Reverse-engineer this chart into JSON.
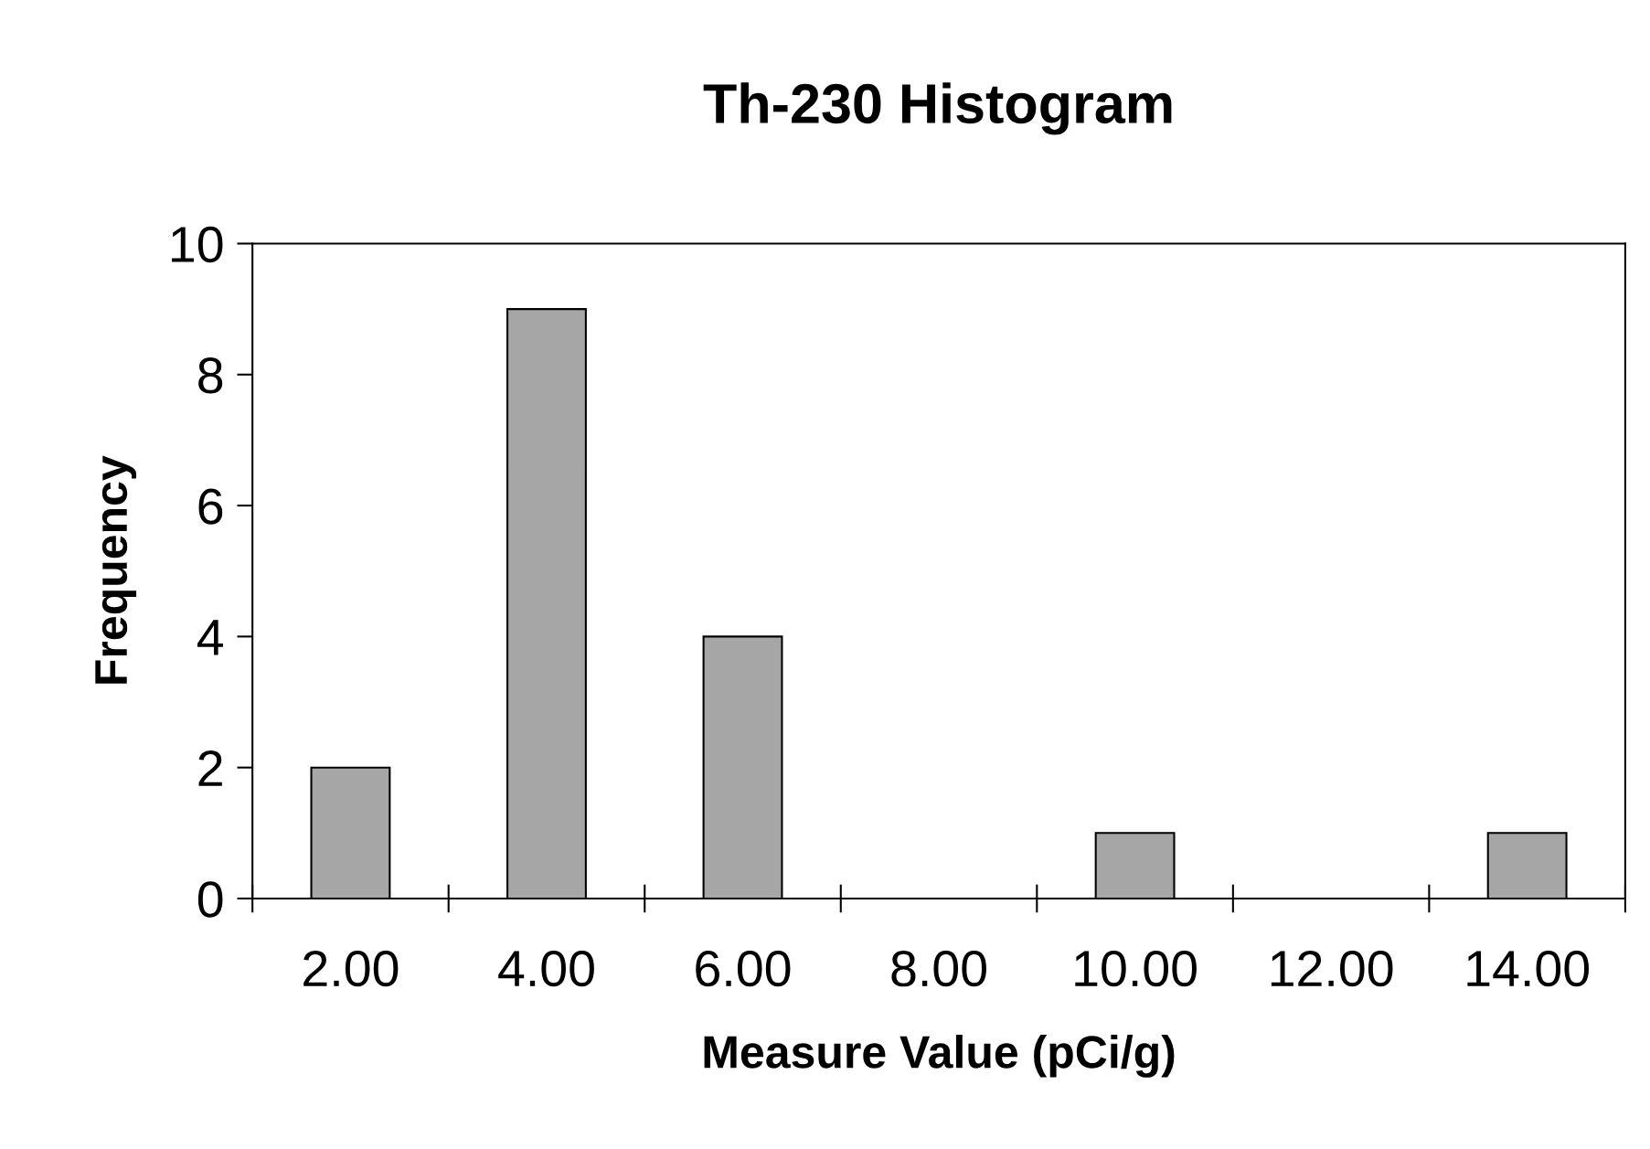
{
  "chart_data": {
    "type": "bar",
    "title": "Th-230 Histogram",
    "xlabel": "Measure Value (pCi/g)",
    "ylabel": "Frequency",
    "categories": [
      "2.00",
      "4.00",
      "6.00",
      "8.00",
      "10.00",
      "12.00",
      "14.00"
    ],
    "values": [
      2,
      9,
      4,
      0,
      1,
      0,
      1
    ],
    "color": "#a6a6a6",
    "ylim": [
      0,
      10
    ],
    "yticks": [
      0,
      2,
      4,
      6,
      8,
      10
    ],
    "grid": false,
    "legend": false
  }
}
